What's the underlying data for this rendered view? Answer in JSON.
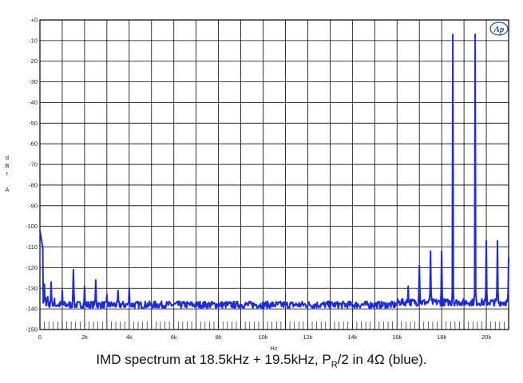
{
  "chart_data": {
    "type": "line",
    "xlabel": "Hz",
    "ylabel": [
      "d",
      "B",
      "r",
      "",
      "A"
    ],
    "xlim": [
      0,
      21000
    ],
    "ylim": [
      -150,
      0
    ],
    "grid": true,
    "x_tick_labels": [
      "0",
      "2k",
      "4k",
      "6k",
      "8k",
      "10k",
      "12k",
      "14k",
      "16k",
      "18k",
      "20k"
    ],
    "x_tick_values": [
      0,
      2000,
      4000,
      6000,
      8000,
      10000,
      12000,
      14000,
      16000,
      18000,
      20000
    ],
    "y_tick_labels": [
      "+0",
      "-10",
      "-20",
      "-30",
      "-40",
      "-50",
      "-60",
      "-70",
      "-80",
      "-90",
      "-100",
      "-110",
      "-120",
      "-130",
      "-140",
      "-150"
    ],
    "y_tick_values": [
      0,
      -10,
      -20,
      -30,
      -40,
      -50,
      -60,
      -70,
      -80,
      -90,
      -100,
      -110,
      -120,
      -130,
      -140,
      -150
    ],
    "series": [
      {
        "color": "#1f2bd6",
        "noise_floor": -138,
        "low_freq_start": -102,
        "peaks": [
          {
            "x": 200,
            "y": -128
          },
          {
            "x": 500,
            "y": -127
          },
          {
            "x": 1000,
            "y": -131
          },
          {
            "x": 1500,
            "y": -121
          },
          {
            "x": 2000,
            "y": -129
          },
          {
            "x": 2500,
            "y": -126
          },
          {
            "x": 3000,
            "y": -133
          },
          {
            "x": 3500,
            "y": -131
          },
          {
            "x": 4000,
            "y": -130
          },
          {
            "x": 16500,
            "y": -129
          },
          {
            "x": 17000,
            "y": -119
          },
          {
            "x": 17500,
            "y": -112
          },
          {
            "x": 18000,
            "y": -112
          },
          {
            "x": 18500,
            "y": -7
          },
          {
            "x": 19500,
            "y": -7
          },
          {
            "x": 20000,
            "y": -107
          },
          {
            "x": 20500,
            "y": -107
          },
          {
            "x": 21000,
            "y": -115
          }
        ]
      }
    ]
  },
  "logo": {
    "text": "Ap",
    "color": "#1f4fa8"
  },
  "caption": {
    "pre": "IMD spectrum at 18.5kHz + 19.5kHz, P",
    "sub": "R",
    "post": "/2 in 4Ω (blue)."
  }
}
